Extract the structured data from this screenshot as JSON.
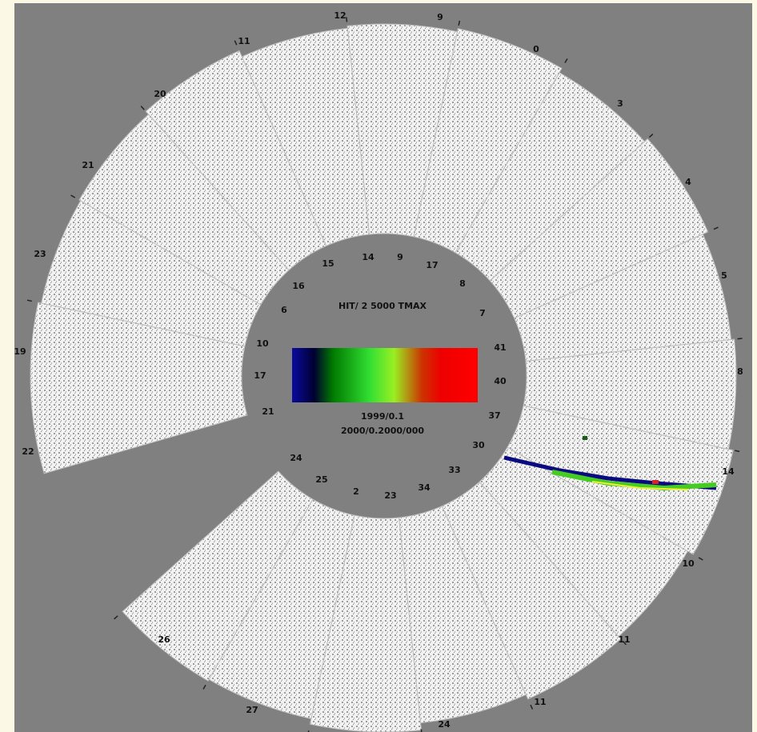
{
  "display": {
    "outer_labels": [
      "12",
      "9",
      "0",
      "3",
      "4",
      "5",
      "8",
      "14",
      "10",
      "11",
      "11",
      "24",
      "27",
      "26",
      "22",
      "19",
      "23",
      "21",
      "20",
      "11"
    ],
    "inner_labels": [
      "14",
      "9",
      "17",
      "8",
      "7",
      "41",
      "40",
      "37",
      "30",
      "33",
      "34",
      "23",
      "2",
      "25",
      "24",
      "21",
      "17",
      "10",
      "6",
      "16",
      "15"
    ],
    "center_title": "HIT/ 2 5000 TMAX",
    "scale_min": "1999/0.1",
    "scale_max": "2000/0.2000/000"
  }
}
